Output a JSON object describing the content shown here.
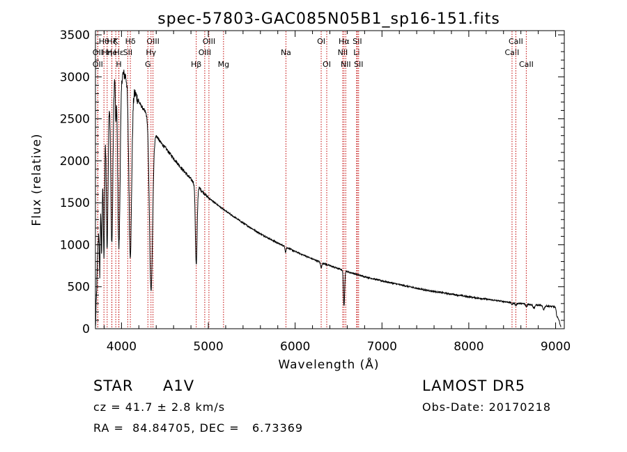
{
  "chart_data": {
    "type": "line",
    "title": "spec-57803-GAC085N05B1_sp16-151.fits",
    "xlabel": "Wavelength (Å)",
    "ylabel": "Flux (relative)",
    "xlim": [
      3700,
      9100
    ],
    "ylim": [
      0,
      3550
    ],
    "xticks": [
      4000,
      5000,
      6000,
      7000,
      8000,
      9000
    ],
    "yticks": [
      0,
      500,
      1000,
      1500,
      2000,
      2500,
      3000,
      3500
    ],
    "grid": false,
    "line_color": "#000000",
    "marker_color": "#c00000",
    "continuum": {
      "x": [
        3700,
        3760,
        3820,
        3880,
        3940,
        4000,
        4060,
        4120,
        4160,
        4200,
        4260,
        4300,
        4340,
        4380,
        4400,
        4450,
        4500,
        4600,
        4700,
        4800,
        4850,
        4900,
        5000,
        5200,
        5400,
        5600,
        5800,
        6000,
        6200,
        6400,
        6600,
        6800,
        7000,
        7500,
        8000,
        8500,
        8800,
        9000,
        9060
      ],
      "y": [
        0,
        2000,
        2600,
        2900,
        3100,
        3050,
        3000,
        2850,
        2800,
        2700,
        2600,
        2550,
        2400,
        2320,
        2300,
        2220,
        2160,
        2030,
        1900,
        1780,
        1720,
        1670,
        1560,
        1400,
        1260,
        1130,
        1020,
        920,
        830,
        750,
        680,
        620,
        570,
        460,
        380,
        310,
        280,
        260,
        20
      ]
    },
    "absorption_lines": [
      {
        "x": 3750,
        "depth": 1000,
        "width": 6
      },
      {
        "x": 3771,
        "depth": 1200,
        "width": 7
      },
      {
        "x": 3798,
        "depth": 1500,
        "width": 8
      },
      {
        "x": 3835,
        "depth": 1700,
        "width": 10
      },
      {
        "x": 3889,
        "depth": 1900,
        "width": 12
      },
      {
        "x": 3934,
        "depth": 600,
        "width": 5
      },
      {
        "x": 3970,
        "depth": 2100,
        "width": 14
      },
      {
        "x": 4101,
        "depth": 2000,
        "width": 16
      },
      {
        "x": 4340,
        "depth": 1950,
        "width": 18
      },
      {
        "x": 4861,
        "depth": 950,
        "width": 10
      },
      {
        "x": 5890,
        "depth": 60,
        "width": 6
      },
      {
        "x": 6300,
        "depth": 60,
        "width": 8
      },
      {
        "x": 6563,
        "depth": 430,
        "width": 7
      },
      {
        "x": 8498,
        "depth": 20,
        "width": 8
      },
      {
        "x": 8542,
        "depth": 30,
        "width": 8
      },
      {
        "x": 8662,
        "depth": 30,
        "width": 8
      },
      {
        "x": 8750,
        "depth": 40,
        "width": 10
      },
      {
        "x": 8862,
        "depth": 45,
        "width": 10
      },
      {
        "x": 9015,
        "depth": 50,
        "width": 10
      }
    ],
    "line_markers": [
      {
        "label": "OII",
        "x": 3727,
        "row": 2
      },
      {
        "label": "Hθ",
        "x": 3798,
        "row": 1
      },
      {
        "label": "OII",
        "x": 3727,
        "row": 3
      },
      {
        "label": "Hη",
        "x": 3835,
        "row": 2
      },
      {
        "label": "Hζ",
        "x": 3889,
        "row": 1
      },
      {
        "label": "He",
        "x": 3889,
        "row": 2
      },
      {
        "label": "K",
        "x": 3934,
        "row": 1
      },
      {
        "label": "H",
        "x": 3969,
        "row": 3
      },
      {
        "label": "Hε",
        "x": 3970,
        "row": 2
      },
      {
        "label": "Hδ",
        "x": 4102,
        "row": 1
      },
      {
        "label": "SII",
        "x": 4072,
        "row": 2
      },
      {
        "label": "OIII",
        "x": 4363,
        "row": 1
      },
      {
        "label": "Hγ",
        "x": 4340,
        "row": 2
      },
      {
        "label": "G",
        "x": 4304,
        "row": 3
      },
      {
        "label": "Hβ",
        "x": 4861,
        "row": 3
      },
      {
        "label": "OIII",
        "x": 4959,
        "row": 2
      },
      {
        "label": "OIII",
        "x": 5007,
        "row": 1
      },
      {
        "label": "Mg",
        "x": 5175,
        "row": 3
      },
      {
        "label": "Na",
        "x": 5894,
        "row": 2
      },
      {
        "label": "OI",
        "x": 6300,
        "row": 1
      },
      {
        "label": "OI",
        "x": 6364,
        "row": 3
      },
      {
        "label": "NII",
        "x": 6548,
        "row": 2
      },
      {
        "label": "Hα",
        "x": 6563,
        "row": 1
      },
      {
        "label": "NII",
        "x": 6583,
        "row": 3
      },
      {
        "label": "Li",
        "x": 6708,
        "row": 2
      },
      {
        "label": "SII",
        "x": 6716,
        "row": 1
      },
      {
        "label": "SII",
        "x": 6731,
        "row": 3
      },
      {
        "label": "CaII",
        "x": 8498,
        "row": 2
      },
      {
        "label": "CaII",
        "x": 8542,
        "row": 1
      },
      {
        "label": "CaII",
        "x": 8662,
        "row": 3
      }
    ]
  },
  "info": {
    "object_class": "STAR",
    "subclass": "A1V",
    "survey": "LAMOST DR5",
    "redshift": "cz = 41.7 ± 2.8 km/s",
    "obs_date": "Obs-Date: 20170218",
    "coords": "RA =  84.84705, DEC =   6.73369"
  }
}
